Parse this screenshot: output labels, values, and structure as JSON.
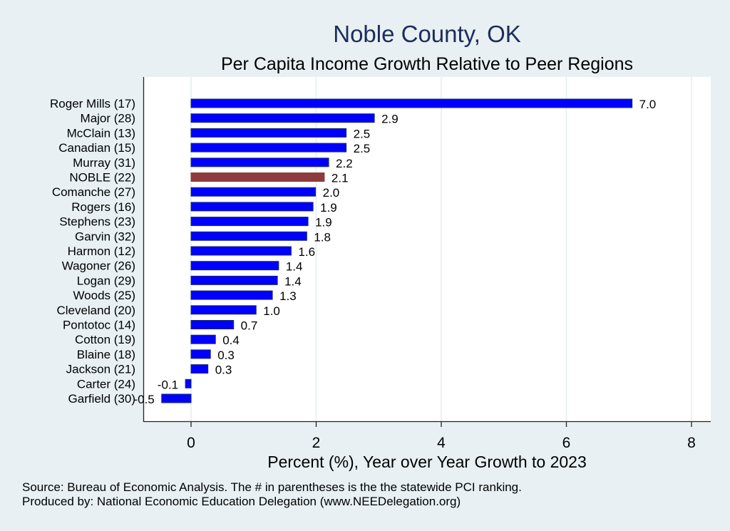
{
  "chart_data": {
    "type": "bar",
    "orientation": "horizontal",
    "title": "Noble County, OK",
    "subtitle": "Per Capita Income Growth Relative to Peer Regions",
    "xlabel": "Percent (%), Year over Year Growth to 2023",
    "ylabel": "",
    "xlim": [
      -0.76,
      8.3
    ],
    "xticks": [
      0,
      2,
      4,
      6,
      8
    ],
    "grid": true,
    "legend": "none",
    "highlight_category": "NOBLE (22)",
    "colors": {
      "bar": "#0000ff",
      "bar_outline": "#1a2a6c",
      "highlight": "#8f3a3e",
      "title": "#1c2d5a",
      "background": "#e8f0f3",
      "plot_background": "#ffffff",
      "grid": "#e4ecef"
    },
    "categories": [
      "Roger Mills (17)",
      "Major (28)",
      "McClain (13)",
      "Canadian (15)",
      "Murray (31)",
      "NOBLE (22)",
      "Comanche (27)",
      "Rogers (16)",
      "Stephens (23)",
      "Garvin (32)",
      "Harmon (12)",
      "Wagoner (26)",
      "Logan (29)",
      "Woods (25)",
      "Cleveland (20)",
      "Pontotoc (14)",
      "Cotton (19)",
      "Blaine (18)",
      "Jackson (21)",
      "Carter (24)",
      "Garfield (30)"
    ],
    "values": [
      7.05,
      2.93,
      2.48,
      2.48,
      2.2,
      2.13,
      1.99,
      1.95,
      1.87,
      1.85,
      1.6,
      1.4,
      1.38,
      1.3,
      1.04,
      0.68,
      0.39,
      0.31,
      0.27,
      -0.09,
      -0.47
    ],
    "data_labels": [
      "7.0",
      "2.9",
      "2.5",
      "2.5",
      "2.2",
      "2.1",
      "2.0",
      "1.9",
      "1.9",
      "1.8",
      "1.6",
      "1.4",
      "1.4",
      "1.3",
      "1.0",
      "0.7",
      "0.4",
      "0.3",
      "0.3",
      "-0.1",
      "-0.5"
    ],
    "notes": [
      "Source: Bureau of Economic Analysis. The # in parentheses is the the statewide PCI ranking.",
      "Produced by: National Economic Education Delegation (www.NEEDelegation.org)"
    ]
  }
}
